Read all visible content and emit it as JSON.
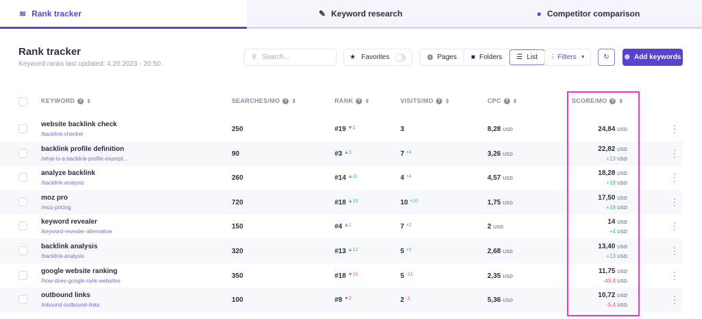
{
  "tabs": [
    {
      "label": "Rank tracker",
      "icon": "layers-icon",
      "active": true
    },
    {
      "label": "Keyword research",
      "icon": "telescope-icon"
    },
    {
      "label": "Competitor comparison",
      "icon": "alien-icon"
    }
  ],
  "header": {
    "title": "Rank tracker",
    "subtitle": "Keyword ranks last updated: 4.20.2023 - 20:50"
  },
  "toolbar": {
    "search_placeholder": "Search...",
    "favorites": "Favorites",
    "favorites_on": false,
    "pages": "Pages",
    "folders": "Folders",
    "list": "List",
    "filters": "Filters",
    "add": "Add keywords"
  },
  "columns": {
    "keyword": "KEYWORD",
    "searches": "SEARCHES/MO",
    "rank": "RANK",
    "visits": "VISITS/MO",
    "cpc": "CPC",
    "score": "SCORE/MO"
  },
  "currency": "USD",
  "rows": [
    {
      "keyword": "website backlink check",
      "url": "/backlink-checker",
      "searches": "250",
      "rank": "#19",
      "rank_change": "1",
      "rank_dir": "down",
      "visits": "3",
      "visits_change": "",
      "cpc": "8,28",
      "score": "24,84",
      "score_change": ""
    },
    {
      "keyword": "backlink profile definition",
      "url": "/what-is-a-backlink-profile-exampl...",
      "searches": "90",
      "rank": "#3",
      "rank_change": "3",
      "rank_dir": "up",
      "visits": "7",
      "visits_change": "+4",
      "cpc": "3,26",
      "score": "22,82",
      "score_change": "+13"
    },
    {
      "keyword": "analyze backlink",
      "url": "/backlink-analysis",
      "searches": "260",
      "rank": "#14",
      "rank_change": "11",
      "rank_dir": "up",
      "visits": "4",
      "visits_change": "+4",
      "cpc": "4,57",
      "score": "18,28",
      "score_change": "+18"
    },
    {
      "keyword": "moz pro",
      "url": "/moz-pricing",
      "searches": "720",
      "rank": "#18",
      "rank_change": "19",
      "rank_dir": "up",
      "visits": "10",
      "visits_change": "+10",
      "cpc": "1,75",
      "score": "17,50",
      "score_change": "+18"
    },
    {
      "keyword": "keyword revealer",
      "url": "/keyword-revealer-alternative",
      "searches": "150",
      "rank": "#4",
      "rank_change": "1",
      "rank_dir": "up",
      "visits": "7",
      "visits_change": "+2",
      "cpc": "2",
      "score": "14",
      "score_change": "+4"
    },
    {
      "keyword": "backlink analysis",
      "url": "/backlink-analysis",
      "searches": "320",
      "rank": "#13",
      "rank_change": "12",
      "rank_dir": "up",
      "visits": "5",
      "visits_change": "+5",
      "cpc": "2,68",
      "score": "13,40",
      "score_change": "+13"
    },
    {
      "keyword": "google website ranking",
      "url": "/how-does-google-rank-websites",
      "searches": "350",
      "rank": "#18",
      "rank_change": "15",
      "rank_dir": "down",
      "visits": "5",
      "visits_change": "-21",
      "cpc": "2,35",
      "score": "11,75",
      "score_change": "-49.4"
    },
    {
      "keyword": "outbound links",
      "url": "/inbound-outbound-links",
      "searches": "100",
      "rank": "#9",
      "rank_change": "2",
      "rank_dir": "down",
      "visits": "2",
      "visits_change": "-1",
      "cpc": "5,36",
      "score": "10,72",
      "score_change": "-5.4"
    }
  ]
}
